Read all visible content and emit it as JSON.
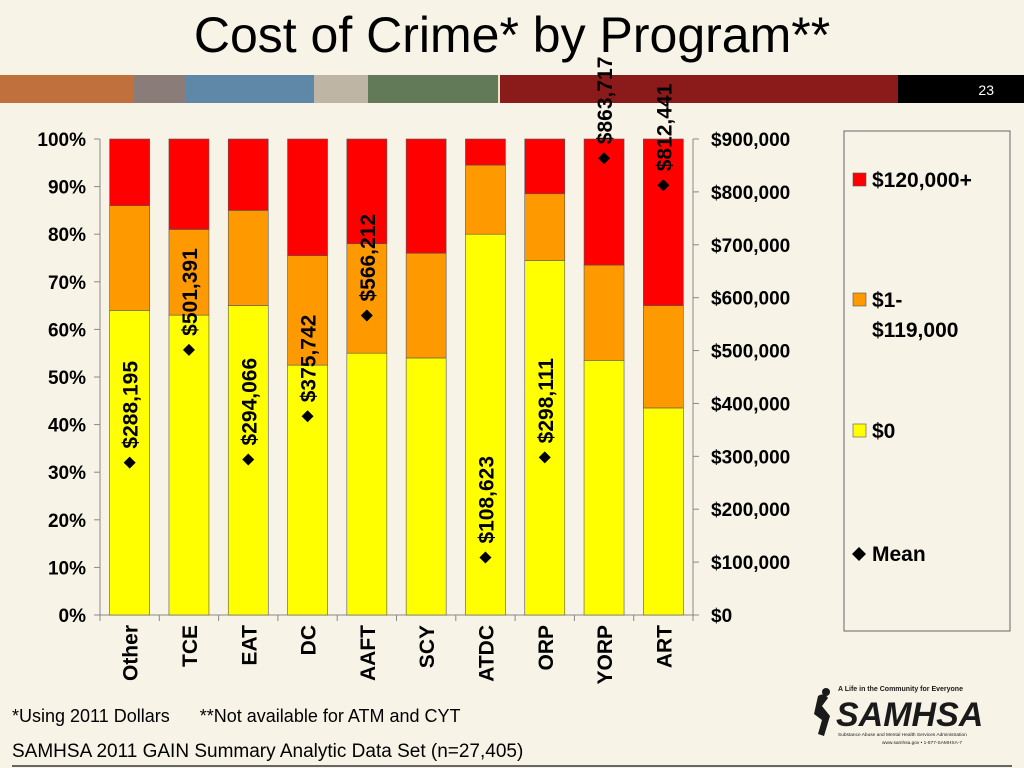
{
  "slide": {
    "title": "Cost of Crime* by Program**",
    "number": "23",
    "footnote_dollars": "*Using 2011 Dollars",
    "footnote_programs": "**Not available for ATM and CYT",
    "source": "SAMHSA 2011 GAIN Summary Analytic Data Set (n=27,405)",
    "logo_tagline": "A Life in the Community for Everyone",
    "logo_name": "SAMHSA",
    "logo_subtitle": "Substance Abuse and Mental Health Services Administration",
    "logo_contact": "www.samhsa.gov • 1-877-SAMHSA-7",
    "stripe_colors": [
      "#c0703c",
      "#8a7c78",
      "#5f87a8",
      "#bfb5a5",
      "#637a58",
      "#f0e6c8",
      "#8b1a1a",
      "#f0e6c8"
    ]
  },
  "chart_data": {
    "type": "bar",
    "stacked": true,
    "categories": [
      "Other",
      "TCE",
      "EAT",
      "DC",
      "AAFT",
      "SCY",
      "ATDC",
      "ORP",
      "YORP",
      "ART"
    ],
    "series": [
      {
        "name": "$0",
        "color": "#ffff00",
        "values": [
          64,
          63,
          65,
          52.5,
          55,
          54,
          80,
          74.5,
          53.5,
          43.5
        ]
      },
      {
        "name": "$1-$119,000",
        "color": "#ff9900",
        "values": [
          22,
          18,
          20,
          23,
          23,
          22,
          14.5,
          14,
          20,
          21.5
        ]
      },
      {
        "name": "$120,000+",
        "color": "#ff0000",
        "values": [
          14,
          19,
          15,
          24.5,
          22,
          24,
          5.5,
          11.5,
          26.5,
          35
        ]
      }
    ],
    "mean": {
      "name": "Mean",
      "values": [
        288195,
        501391,
        294066,
        375742,
        566212,
        0,
        108623,
        298111,
        863717,
        812441
      ],
      "labels": [
        "$288,195",
        "$501,391",
        "$294,066",
        "$375,742",
        "$566,212",
        "",
        "$108,623",
        "$298,111",
        "$863,717",
        "$812,441"
      ],
      "shown": [
        true,
        true,
        true,
        true,
        true,
        false,
        true,
        true,
        true,
        true
      ]
    },
    "left_axis": {
      "min": 0,
      "max": 100,
      "ticks": [
        "0%",
        "10%",
        "20%",
        "30%",
        "40%",
        "50%",
        "60%",
        "70%",
        "80%",
        "90%",
        "100%"
      ]
    },
    "right_axis": {
      "min": 0,
      "max": 900000,
      "ticks": [
        "$0",
        "$100,000",
        "$200,000",
        "$300,000",
        "$400,000",
        "$500,000",
        "$600,000",
        "$700,000",
        "$800,000",
        "$900,000"
      ]
    },
    "legend": {
      "position": "right",
      "items": [
        {
          "label": "$120,000+",
          "color": "#ff0000",
          "kind": "box"
        },
        {
          "label": "$1-\n$119,000",
          "color": "#ff9900",
          "kind": "box"
        },
        {
          "label": "$0",
          "color": "#ffff00",
          "kind": "box"
        },
        {
          "label": "Mean",
          "color": "#000000",
          "kind": "diamond"
        }
      ]
    }
  }
}
